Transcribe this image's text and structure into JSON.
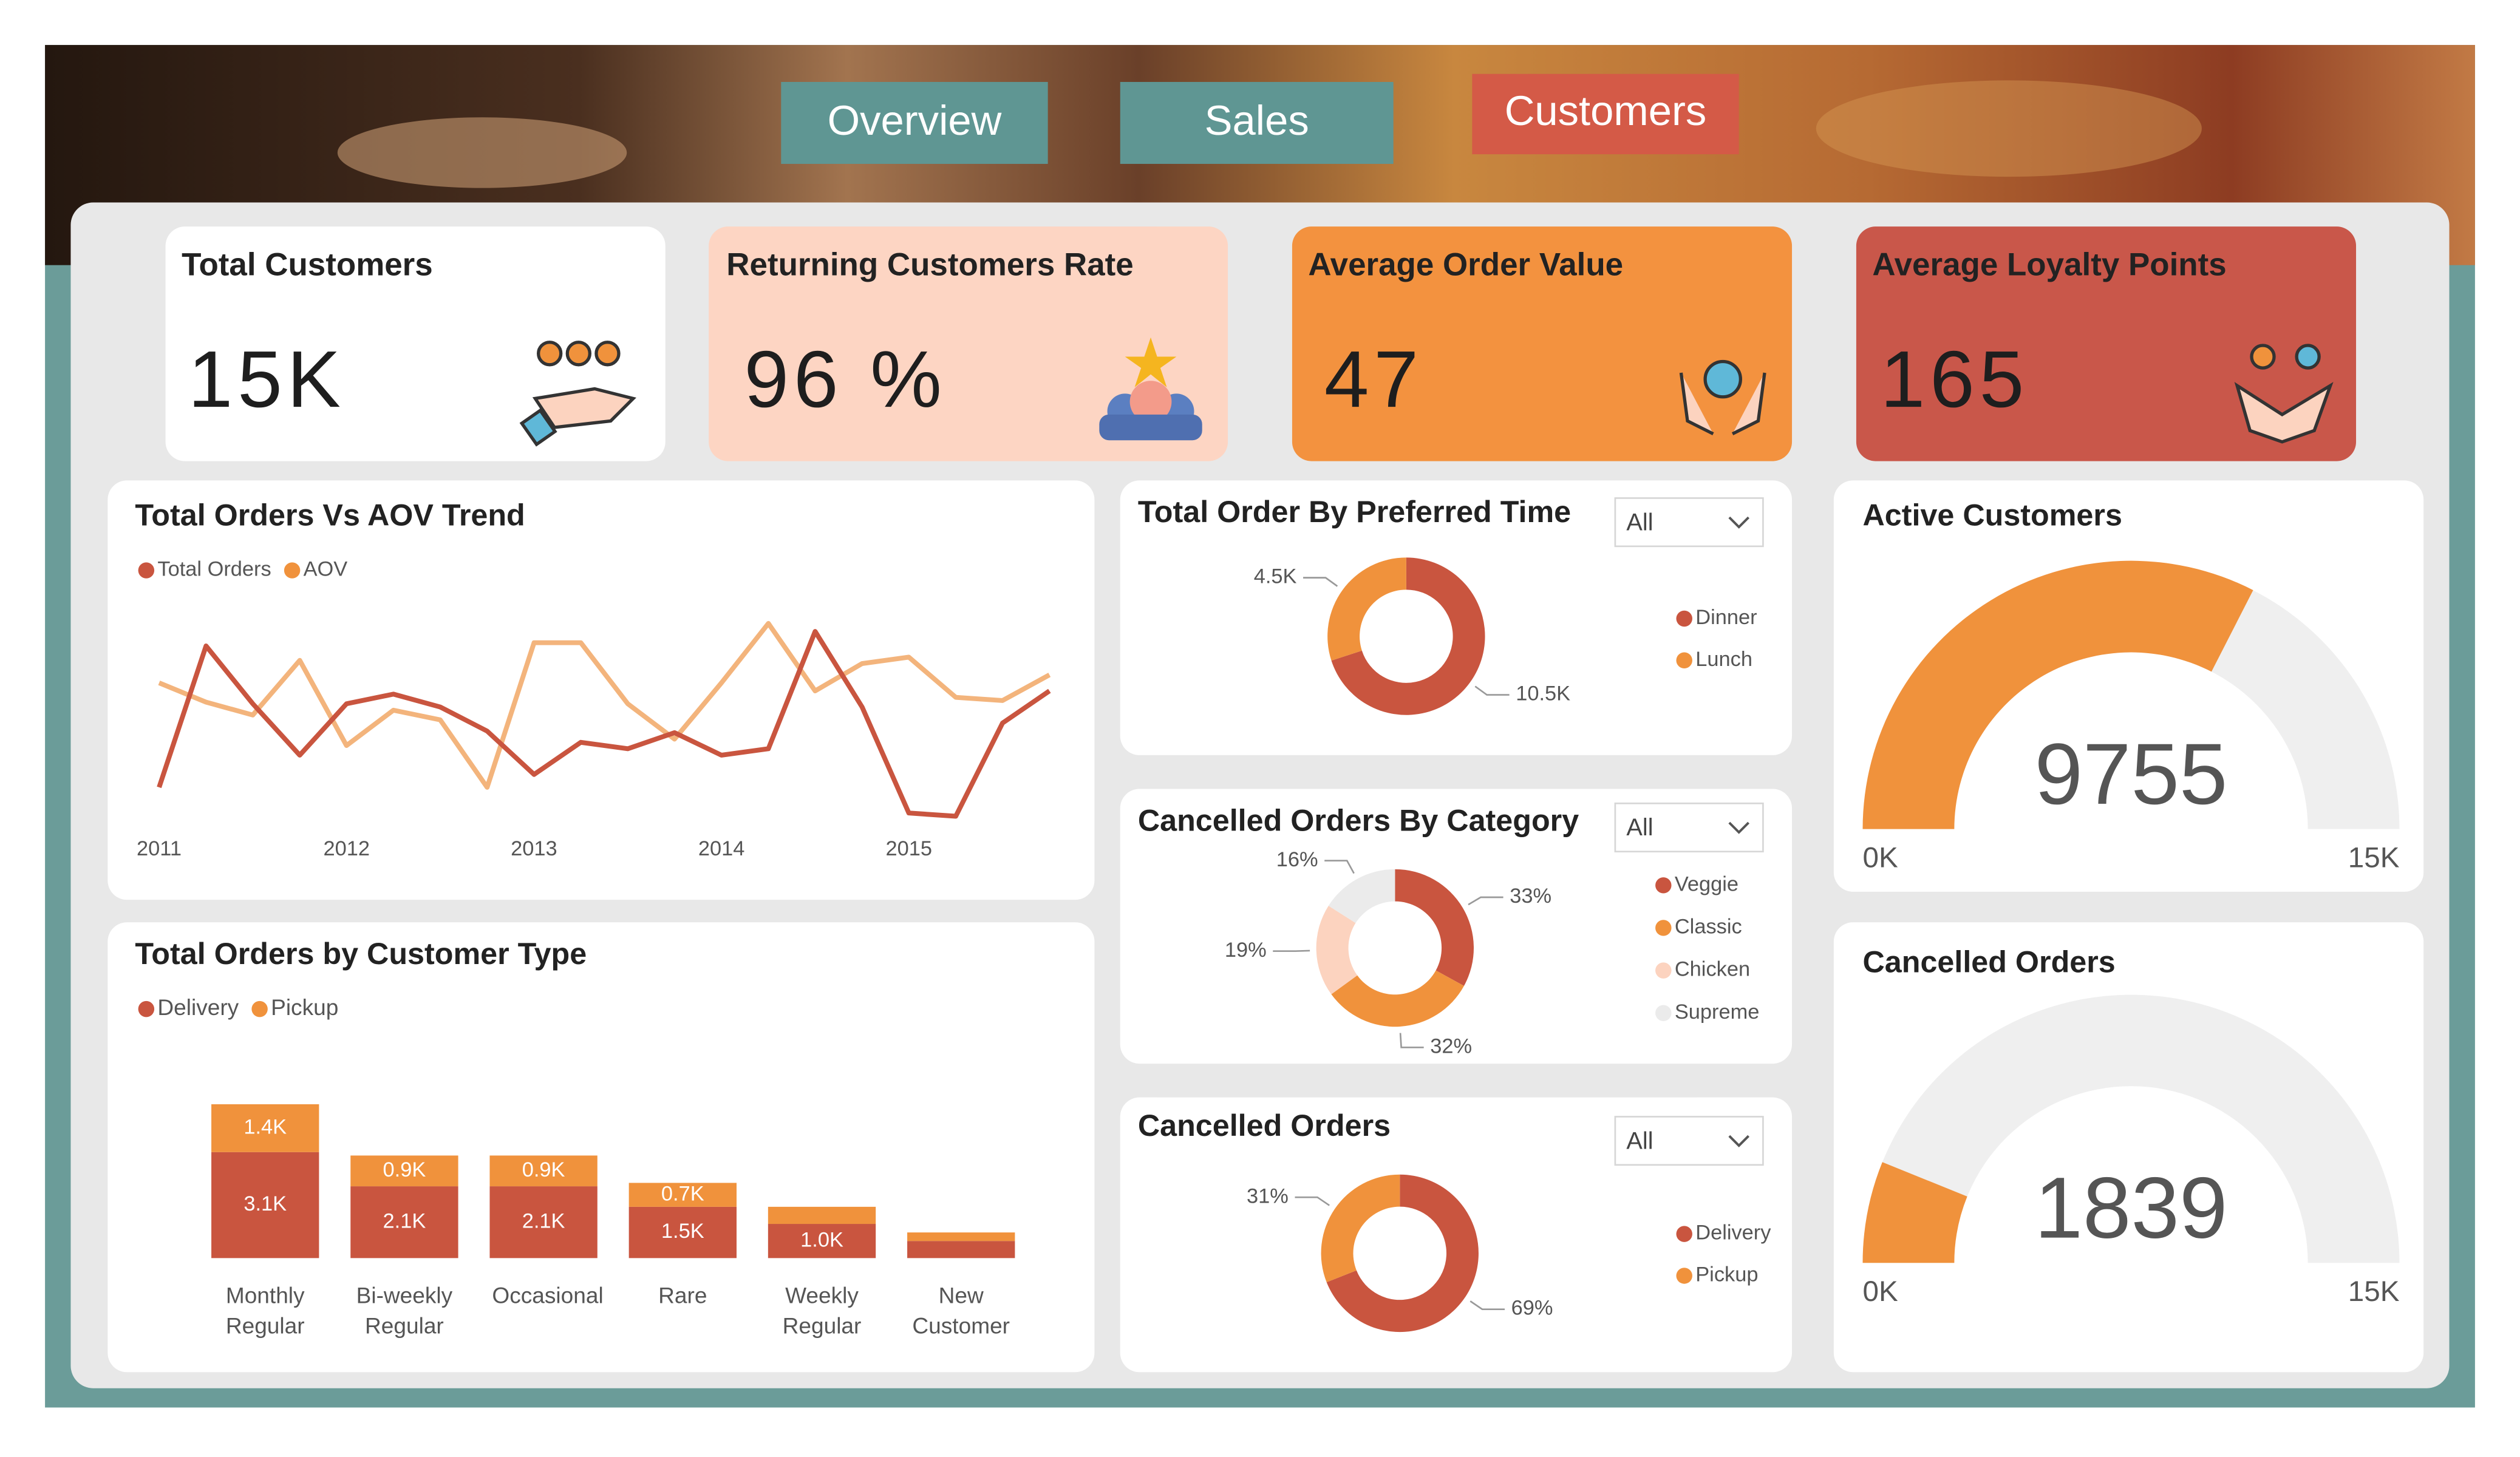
{
  "nav": [
    "Overview",
    "Sales",
    "Customers"
  ],
  "kpis": [
    {
      "title": "Total Customers",
      "value": "15K"
    },
    {
      "title": "Returning Customers Rate",
      "value": "96 %"
    },
    {
      "title": "Average Order Value",
      "value": "47"
    },
    {
      "title": "Average Loyalty Points",
      "value": "165"
    }
  ],
  "chart_data": [
    {
      "type": "line",
      "title": "Total Orders Vs AOV Trend",
      "x": [
        2011,
        2011.25,
        2011.5,
        2011.75,
        2012,
        2012.25,
        2012.5,
        2012.75,
        2013,
        2013.25,
        2013.5,
        2013.75,
        2014,
        2014.25,
        2014.5,
        2014.75,
        2015,
        2015.25,
        2015.5,
        2015.75
      ],
      "xlim": [
        2011,
        2015.75
      ],
      "xticks": [
        2011,
        2012,
        2013,
        2014,
        2015
      ],
      "ylim": [
        0,
        140
      ],
      "series": [
        {
          "name": "Total Orders",
          "color": "#c9553f",
          "values": [
            25,
            113,
            77,
            45,
            77,
            83,
            75,
            60,
            33,
            53,
            49,
            59,
            45,
            49,
            122,
            75,
            9,
            7,
            65,
            85
          ]
        },
        {
          "name": "AOV",
          "color": "#f0923c",
          "line_color": "#f3b47c",
          "values": [
            90,
            78,
            70,
            104,
            51,
            73,
            67,
            25,
            115,
            115,
            77,
            55,
            90,
            127,
            85,
            102,
            106,
            81,
            79,
            95
          ]
        }
      ]
    },
    {
      "type": "donut",
      "title": "Total Order By Preferred Time",
      "filter": "All",
      "categories": [
        "Dinner",
        "Lunch"
      ],
      "values": [
        10500,
        4500
      ],
      "value_labels": [
        "10.5K",
        "4.5K"
      ],
      "colors": [
        "#c9553f",
        "#f0923c"
      ]
    },
    {
      "type": "donut",
      "title": "Cancelled Orders By Category",
      "filter": "All",
      "categories": [
        "Veggie",
        "Classic",
        "Chicken",
        "Supreme"
      ],
      "values": [
        33,
        32,
        19,
        16
      ],
      "value_labels": [
        "33%",
        "32%",
        "19%",
        "16%"
      ],
      "colors": [
        "#c9553f",
        "#f0923c",
        "#fcd3bf",
        "#ebebeb"
      ]
    },
    {
      "type": "donut",
      "title": "Cancelled Orders",
      "filter": "All",
      "categories": [
        "Delivery",
        "Pickup"
      ],
      "values": [
        69,
        31
      ],
      "value_labels": [
        "69%",
        "31%"
      ],
      "colors": [
        "#c9553f",
        "#f0923c"
      ]
    },
    {
      "type": "stacked_bar",
      "title": "Total Orders by Customer Type",
      "categories": [
        "Monthly Regular",
        "Bi-weekly Regular",
        "Occasional",
        "Rare",
        "Weekly Regular",
        "New Customer"
      ],
      "ylim": [
        0,
        4700
      ],
      "series": [
        {
          "name": "Delivery",
          "color": "#c9553f",
          "values": [
            3100,
            2100,
            2100,
            1500,
            1000,
            500
          ],
          "value_labels": [
            "3.1K",
            "2.1K",
            "2.1K",
            "1.5K",
            "1.0K",
            null
          ]
        },
        {
          "name": "Pickup",
          "color": "#f0923c",
          "values": [
            1400,
            900,
            900,
            700,
            500,
            250
          ],
          "value_labels": [
            "1.4K",
            "0.9K",
            "0.9K",
            "0.7K",
            null,
            null
          ]
        }
      ]
    },
    {
      "type": "gauge",
      "title": "Active Customers",
      "value": 9755,
      "min": {
        "value": 0,
        "label": "0K"
      },
      "max": {
        "value": 15000,
        "label": "15K"
      },
      "color": "#f0923c"
    },
    {
      "type": "gauge",
      "title": "Cancelled Orders",
      "value": 1839,
      "min": {
        "value": 0,
        "label": "0K"
      },
      "max": {
        "value": 15000,
        "label": "15K"
      },
      "color": "#f0923c"
    }
  ]
}
